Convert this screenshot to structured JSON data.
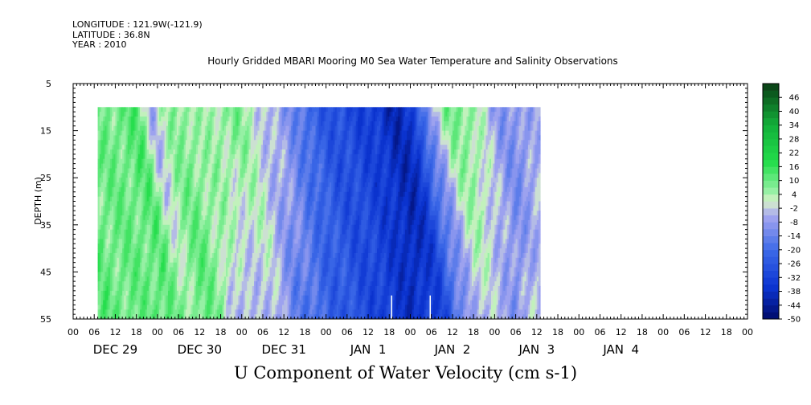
{
  "header": {
    "longitude": "LONGITUDE : 121.9W(-121.9)",
    "latitude": "LATITUDE : 36.8N",
    "year": "YEAR : 2010"
  },
  "chart_data": {
    "type": "heatmap",
    "title": "Hourly Gridded MBARI Mooring M0 Sea Water Temperature and Salinity Observations",
    "subtitle": "U Component of Water Velocity (cm s-1)",
    "ylabel": "DEPTH (m)",
    "ylim": [
      55,
      5
    ],
    "y_ticks": [
      5,
      15,
      25,
      35,
      45,
      55
    ],
    "x_hour_ticks": [
      "00",
      "06",
      "12",
      "18",
      "00",
      "06",
      "12",
      "18",
      "00",
      "06",
      "12",
      "18",
      "00",
      "06",
      "12",
      "18",
      "00",
      "06",
      "12",
      "18",
      "00",
      "06",
      "12",
      "18",
      "00",
      "06",
      "12",
      "18",
      "00",
      "06",
      "12",
      "18",
      "00"
    ],
    "x_day_labels": [
      "DEC 29",
      "DEC 30",
      "DEC 31",
      "JAN  1",
      "JAN  2",
      "JAN  3",
      "JAN  4"
    ],
    "data_start_hour": 7,
    "data_end_hour": 133,
    "data_depth_range": [
      10,
      55
    ],
    "colorbar": {
      "levels": [
        46,
        40,
        34,
        28,
        22,
        16,
        10,
        4,
        -2,
        -8,
        -14,
        -20,
        -26,
        -32,
        -38,
        -44,
        -50
      ],
      "range": [
        -50,
        52
      ],
      "step": 3
    },
    "profile_estimate": {
      "hours": [
        7,
        12,
        18,
        22,
        26,
        30,
        36,
        42,
        46,
        50,
        54,
        58,
        62,
        66,
        72,
        78,
        84,
        88,
        90,
        96,
        100,
        106,
        110,
        114,
        120,
        126,
        130,
        133
      ],
      "surface_u": [
        8,
        10,
        12,
        -6,
        4,
        8,
        3,
        6,
        8,
        4,
        -4,
        -6,
        -12,
        -20,
        -26,
        -30,
        -32,
        -38,
        -40,
        -36,
        -12,
        8,
        10,
        4,
        -8,
        -10,
        -6,
        -4
      ],
      "bottom_u": [
        14,
        12,
        10,
        10,
        12,
        12,
        14,
        6,
        -8,
        -14,
        -10,
        -12,
        -22,
        -26,
        -28,
        -28,
        -30,
        -34,
        -36,
        -40,
        -30,
        -24,
        -18,
        -10,
        -14,
        -16,
        0,
        4
      ]
    }
  },
  "colors": {
    "positive_dark": "#0a3d15",
    "positive_bright": "#22dd4a",
    "near_zero": "#d8f2c8",
    "negative_light": "#a8a8f0",
    "negative_dark": "#000a6a"
  }
}
